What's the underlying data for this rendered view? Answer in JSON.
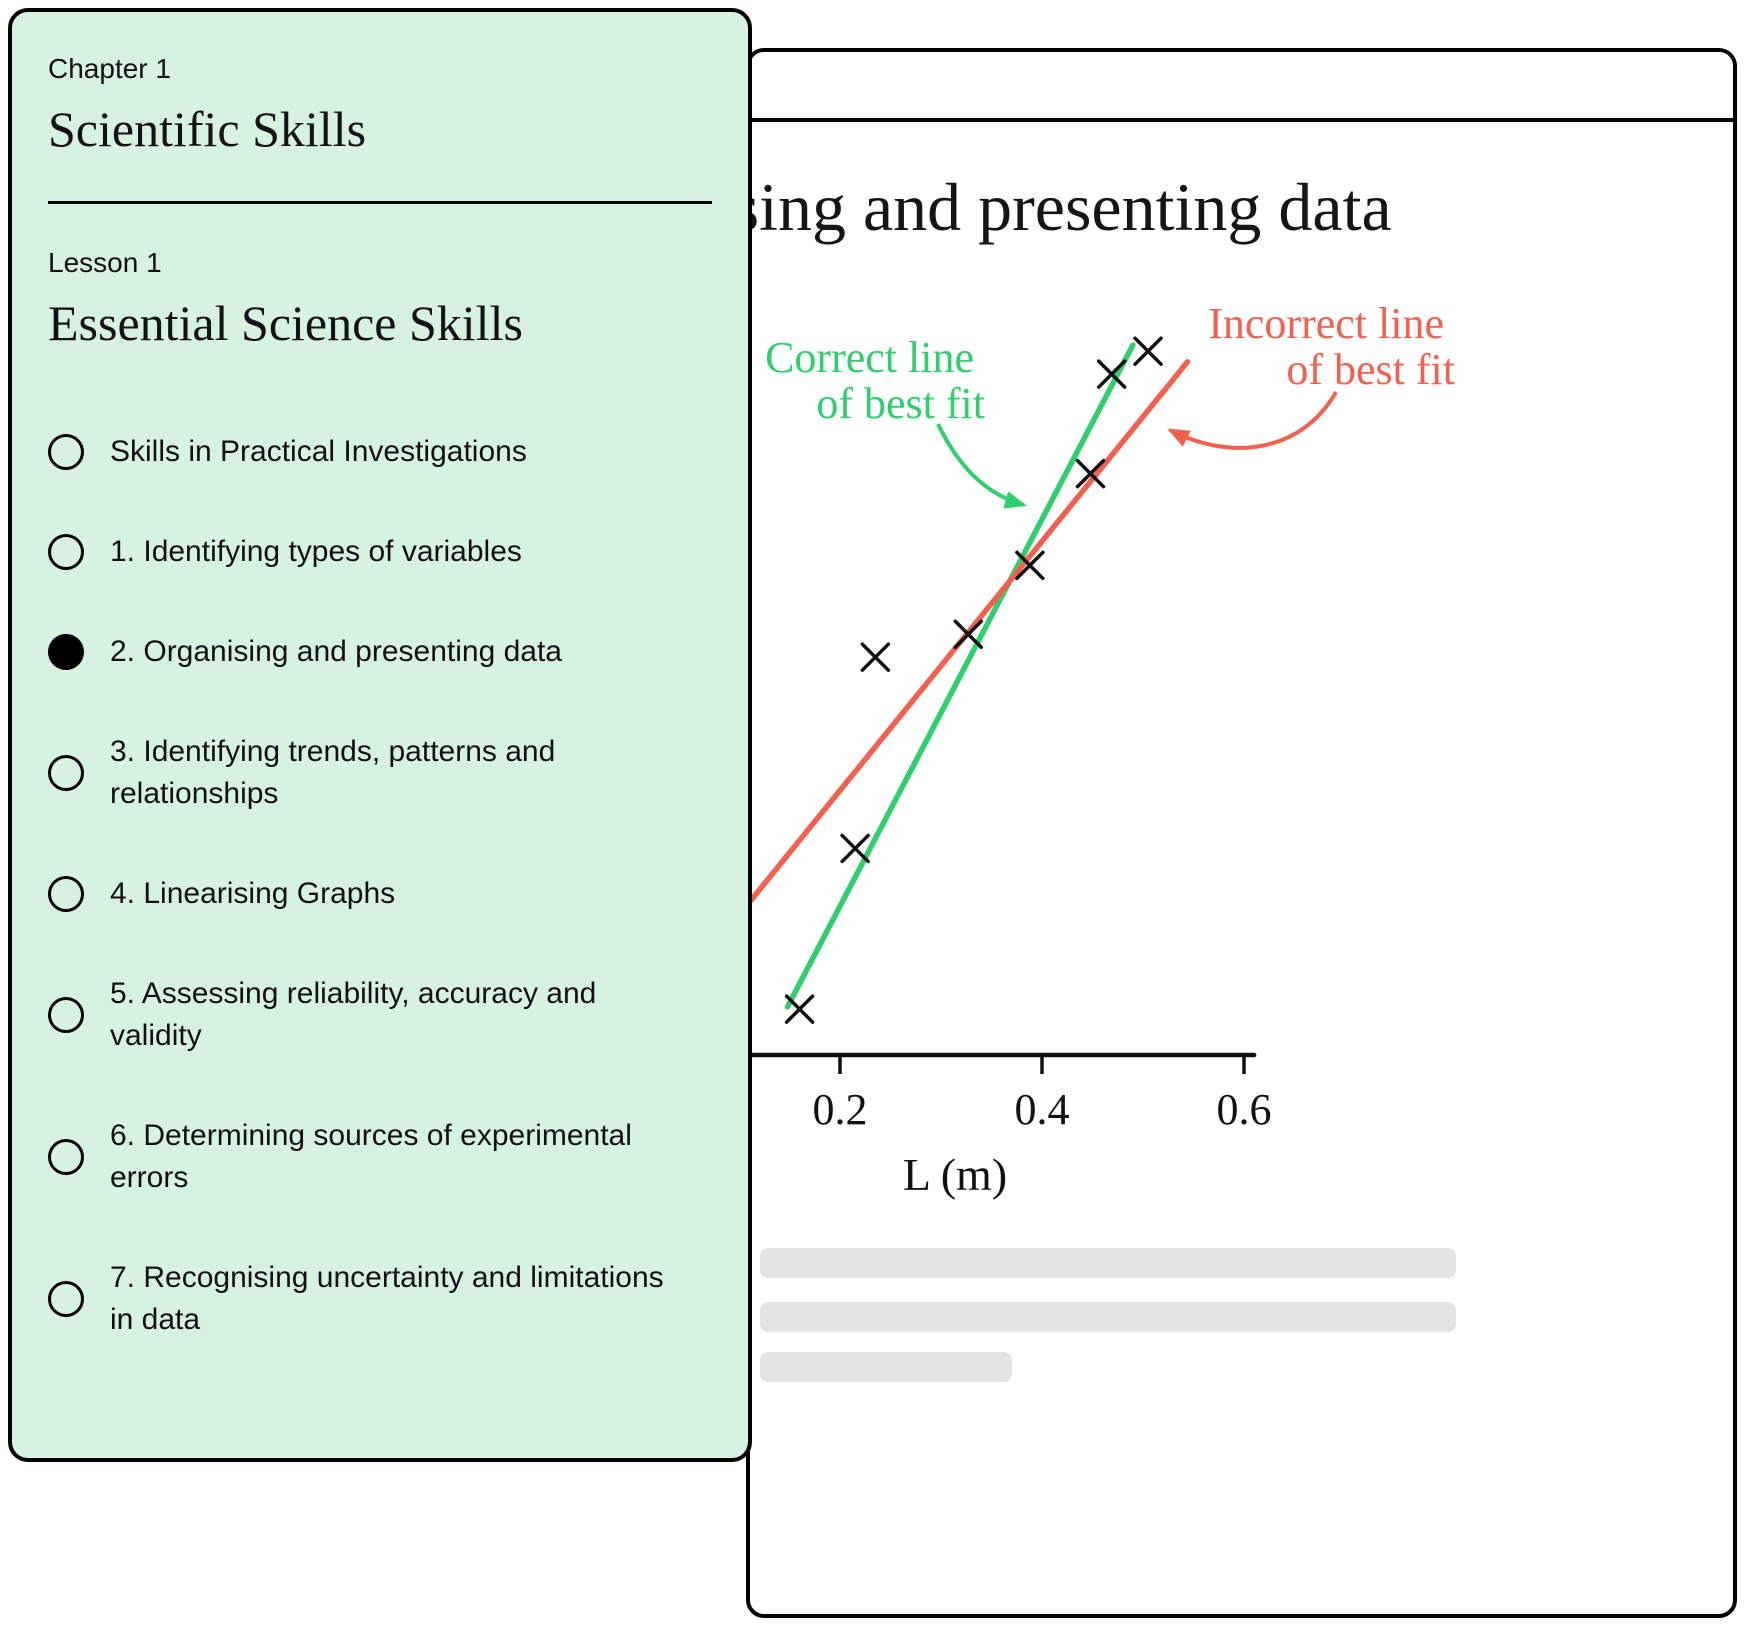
{
  "sidebar": {
    "chapter_label": "Chapter 1",
    "chapter_title": "Scientific Skills",
    "lesson_label": "Lesson 1",
    "lesson_title": "Essential Science Skills",
    "items": [
      {
        "label": "Skills in Practical Investigations",
        "selected": false
      },
      {
        "label": "1. Identifying types of variables",
        "selected": false
      },
      {
        "label": "2. Organising and presenting data",
        "selected": true
      },
      {
        "label": "3. Identifying trends, patterns and relationships",
        "selected": false
      },
      {
        "label": "4. Linearising Graphs",
        "selected": false
      },
      {
        "label": "5. Assessing reliability, accuracy and validity",
        "selected": false
      },
      {
        "label": "6. Determining sources of experimental errors",
        "selected": false
      },
      {
        "label": "7. Recognising uncertainty and limitations in data",
        "selected": false
      }
    ]
  },
  "main": {
    "title": "Organising and presenting data"
  },
  "chart_data": {
    "type": "scatter",
    "title": "",
    "xlabel": "L (m)",
    "ylabel": "",
    "x_ticks": [
      0.2,
      0.4,
      0.6
    ],
    "x_axis_range": [
      0.06,
      0.61
    ],
    "points": [
      {
        "x": 0.16,
        "y": 6
      },
      {
        "x": 0.215,
        "y": 27
      },
      {
        "x": 0.235,
        "y": 52
      },
      {
        "x": 0.327,
        "y": 55
      },
      {
        "x": 0.388,
        "y": 64
      },
      {
        "x": 0.448,
        "y": 76
      },
      {
        "x": 0.469,
        "y": 89
      },
      {
        "x": 0.505,
        "y": 92
      }
    ],
    "fit_lines": [
      {
        "name": "Correct line of best fit",
        "color": "#2ecf6d",
        "from": {
          "x": 0.148,
          "y": 6.3
        },
        "to": {
          "x": 0.49,
          "y": 92.8
        }
      },
      {
        "name": "Incorrect line of best fit",
        "color": "#f4604d",
        "from": {
          "x": 0.1,
          "y": 18.3
        },
        "to": {
          "x": 0.544,
          "y": 90.6
        }
      }
    ],
    "annotations": [
      {
        "text_lines": [
          "Correct line",
          "of best fit"
        ],
        "color": "#2ecf6d"
      },
      {
        "text_lines": [
          "Incorrect line",
          "of best fit"
        ],
        "color": "#f4604d"
      }
    ]
  },
  "colors": {
    "panel_background": "#d8f2e2",
    "outline": "#000000",
    "correct_line": "#2ecf6d",
    "incorrect_line": "#f4604d",
    "skeleton_bar": "#e4e4e4"
  }
}
